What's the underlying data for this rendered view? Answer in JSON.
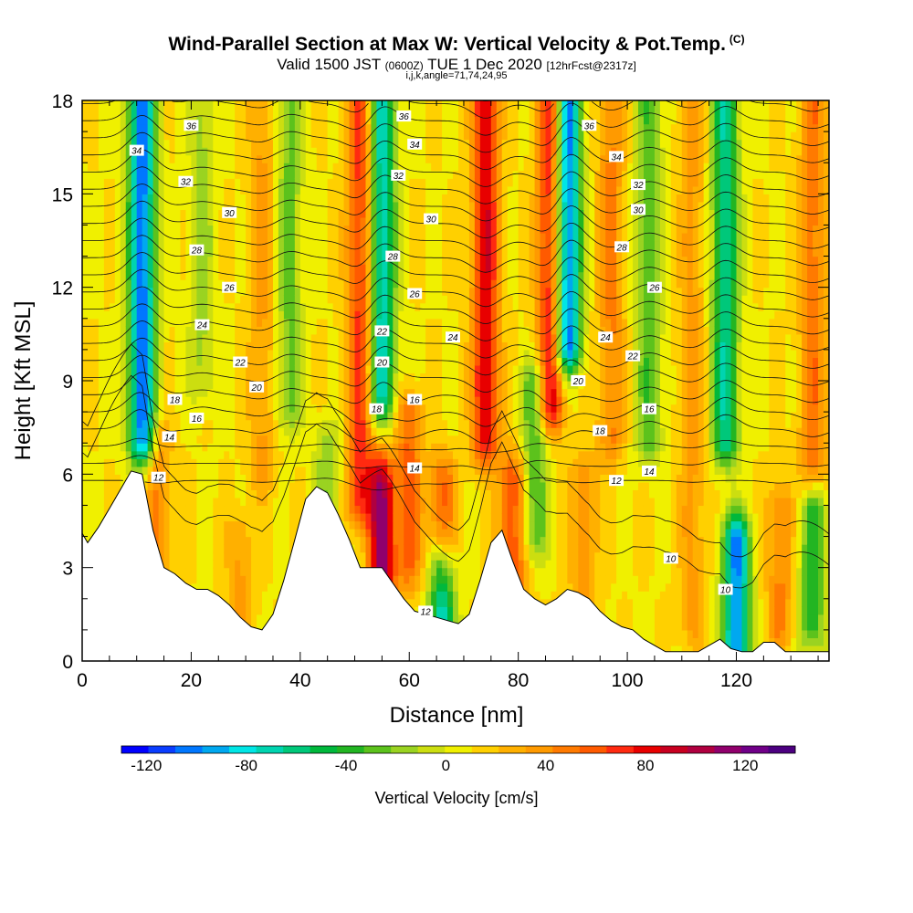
{
  "header": {
    "title": "Wind-Parallel Section at Max W: Vertical Velocity & Pot.Temp.",
    "copyright": "(C)",
    "valid_prefix": "Valid 1500 JST",
    "valid_z": "(0600Z)",
    "valid_date": "TUE 1 Dec 2020",
    "forecast": "[12hrFcst@2317z]",
    "indices": "i,j,k,angle=71,74,24,95"
  },
  "chart_data": {
    "type": "heatmap",
    "xlabel": "Distance [nm]",
    "ylabel": "Height [Kft MSL]",
    "xlim": [
      0,
      137
    ],
    "ylim": [
      0,
      18
    ],
    "x_ticks": [
      0,
      20,
      40,
      60,
      80,
      100,
      120
    ],
    "y_ticks": [
      0,
      3,
      6,
      9,
      12,
      15,
      18
    ],
    "grid": false,
    "terrain": {
      "x": [
        0,
        1,
        3,
        5,
        7,
        9,
        11,
        13,
        15,
        17,
        19,
        21,
        23,
        25,
        27,
        29,
        31,
        33,
        35,
        37,
        39,
        41,
        43,
        45,
        47,
        49,
        51,
        53,
        55,
        57,
        59,
        61,
        63,
        65,
        67,
        69,
        71,
        73,
        75,
        77,
        79,
        81,
        83,
        85,
        87,
        89,
        91,
        93,
        95,
        97,
        99,
        101,
        103,
        105,
        107,
        109,
        111,
        113,
        115,
        117,
        119,
        121,
        123,
        125,
        127,
        129,
        131,
        133,
        135,
        137
      ],
      "height_kft": [
        4.1,
        3.8,
        4.3,
        4.9,
        5.5,
        6.1,
        6.0,
        4.2,
        3.0,
        2.8,
        2.5,
        2.3,
        2.3,
        2.1,
        1.8,
        1.4,
        1.1,
        1.0,
        1.5,
        2.6,
        3.9,
        5.2,
        5.6,
        5.4,
        4.7,
        3.9,
        3.0,
        3.0,
        3.0,
        2.5,
        2.0,
        1.6,
        1.5,
        1.4,
        1.3,
        1.2,
        1.5,
        2.6,
        3.8,
        4.2,
        3.2,
        2.3,
        2.0,
        1.8,
        2.0,
        2.3,
        2.2,
        2.0,
        1.6,
        1.3,
        1.1,
        1.0,
        0.7,
        0.5,
        0.3,
        0.3,
        0.3,
        0.3,
        0.5,
        0.7,
        0.4,
        0.3,
        0.3,
        0.6,
        0.6,
        0.3,
        0.3,
        0.3,
        0.3,
        0.3
      ]
    },
    "vertical_velocity_cm_s": {
      "colorbar_label": "Vertical Velocity [cm/s]",
      "colorbar_ticks": [
        -120,
        -80,
        -40,
        0,
        40,
        80,
        120
      ],
      "range": [
        -130,
        140
      ],
      "background": 10,
      "features": [
        {
          "x": 11,
          "y_min": 7,
          "y_max": 18,
          "peak": -115
        },
        {
          "x": 14,
          "y_min": 2,
          "y_max": 7,
          "peak": 35
        },
        {
          "x": 22,
          "y_min": 9,
          "y_max": 18,
          "peak": -25
        },
        {
          "x": 29,
          "y_min": 1,
          "y_max": 4,
          "peak": 25
        },
        {
          "x": 33,
          "y_min": 6,
          "y_max": 18,
          "peak": 25
        },
        {
          "x": 38,
          "y_min": 8,
          "y_max": 18,
          "peak": -35
        },
        {
          "x": 45,
          "y_min": 3,
          "y_max": 7,
          "peak": -30
        },
        {
          "x": 51,
          "y_min": 5,
          "y_max": 18,
          "peak": 60
        },
        {
          "x": 55,
          "y_min": 1,
          "y_max": 7,
          "peak": 100
        },
        {
          "x": 55,
          "y_min": 7,
          "y_max": 18,
          "peak": -85
        },
        {
          "x": 60,
          "y_min": 3,
          "y_max": 8,
          "peak": 45
        },
        {
          "x": 66,
          "y_min": 0.5,
          "y_max": 3,
          "peak": -85
        },
        {
          "x": 66,
          "y_min": 3,
          "y_max": 6,
          "peak": 45
        },
        {
          "x": 74,
          "y_min": 7,
          "y_max": 18,
          "peak": 75
        },
        {
          "x": 79,
          "y_min": 2,
          "y_max": 6,
          "peak": 55
        },
        {
          "x": 83,
          "y_min": 4,
          "y_max": 9,
          "peak": -45
        },
        {
          "x": 86,
          "y_min": 8,
          "y_max": 18,
          "peak": 75
        },
        {
          "x": 89,
          "y_min": 10,
          "y_max": 18,
          "peak": -120
        },
        {
          "x": 92,
          "y_min": 1,
          "y_max": 6,
          "peak": 30
        },
        {
          "x": 97,
          "y_min": 7,
          "y_max": 18,
          "peak": 35
        },
        {
          "x": 104,
          "y_min": 7,
          "y_max": 18,
          "peak": -40
        },
        {
          "x": 112,
          "y_min": 1,
          "y_max": 18,
          "peak": 25
        },
        {
          "x": 118,
          "y_min": 7,
          "y_max": 18,
          "peak": -75
        },
        {
          "x": 120,
          "y_min": 0.3,
          "y_max": 4,
          "peak": -110
        },
        {
          "x": 128,
          "y_min": 1,
          "y_max": 5,
          "peak": 35
        },
        {
          "x": 134,
          "y_min": 1,
          "y_max": 5,
          "peak": -50
        },
        {
          "x": 134,
          "y_min": 6,
          "y_max": 18,
          "peak": 40
        }
      ]
    },
    "potential_temperature": {
      "contour_interval": 1,
      "label_interval": 2,
      "labels": [
        {
          "text": "36",
          "x": 20,
          "y": 17.2
        },
        {
          "text": "34",
          "x": 10,
          "y": 16.4
        },
        {
          "text": "32",
          "x": 19,
          "y": 15.4
        },
        {
          "text": "30",
          "x": 27,
          "y": 14.4
        },
        {
          "text": "28",
          "x": 21,
          "y": 13.2
        },
        {
          "text": "26",
          "x": 27,
          "y": 12.0
        },
        {
          "text": "24",
          "x": 22,
          "y": 10.8
        },
        {
          "text": "22",
          "x": 29,
          "y": 9.6
        },
        {
          "text": "20",
          "x": 32,
          "y": 8.8
        },
        {
          "text": "18",
          "x": 17,
          "y": 8.4
        },
        {
          "text": "16",
          "x": 21,
          "y": 7.8
        },
        {
          "text": "14",
          "x": 16,
          "y": 7.2
        },
        {
          "text": "12",
          "x": 14,
          "y": 5.9
        },
        {
          "text": "36",
          "x": 59,
          "y": 17.5
        },
        {
          "text": "34",
          "x": 61,
          "y": 16.6
        },
        {
          "text": "32",
          "x": 58,
          "y": 15.6
        },
        {
          "text": "30",
          "x": 64,
          "y": 14.2
        },
        {
          "text": "28",
          "x": 57,
          "y": 13.0
        },
        {
          "text": "26",
          "x": 61,
          "y": 11.8
        },
        {
          "text": "24",
          "x": 68,
          "y": 10.4
        },
        {
          "text": "22",
          "x": 55,
          "y": 10.6
        },
        {
          "text": "20",
          "x": 55,
          "y": 9.6
        },
        {
          "text": "18",
          "x": 54,
          "y": 8.1
        },
        {
          "text": "16",
          "x": 61,
          "y": 8.4
        },
        {
          "text": "14",
          "x": 61,
          "y": 6.2
        },
        {
          "text": "12",
          "x": 63,
          "y": 1.6
        },
        {
          "text": "36",
          "x": 93,
          "y": 17.2
        },
        {
          "text": "34",
          "x": 98,
          "y": 16.2
        },
        {
          "text": "32",
          "x": 102,
          "y": 15.3
        },
        {
          "text": "30",
          "x": 102,
          "y": 14.5
        },
        {
          "text": "28",
          "x": 99,
          "y": 13.3
        },
        {
          "text": "26",
          "x": 105,
          "y": 12.0
        },
        {
          "text": "24",
          "x": 96,
          "y": 10.4
        },
        {
          "text": "22",
          "x": 101,
          "y": 9.8
        },
        {
          "text": "20",
          "x": 91,
          "y": 9.0
        },
        {
          "text": "18",
          "x": 95,
          "y": 7.4
        },
        {
          "text": "16",
          "x": 104,
          "y": 8.1
        },
        {
          "text": "14",
          "x": 104,
          "y": 6.1
        },
        {
          "text": "12",
          "x": 98,
          "y": 5.8
        },
        {
          "text": "10",
          "x": 108,
          "y": 3.3
        },
        {
          "text": "10",
          "x": 118,
          "y": 2.3
        }
      ]
    }
  }
}
